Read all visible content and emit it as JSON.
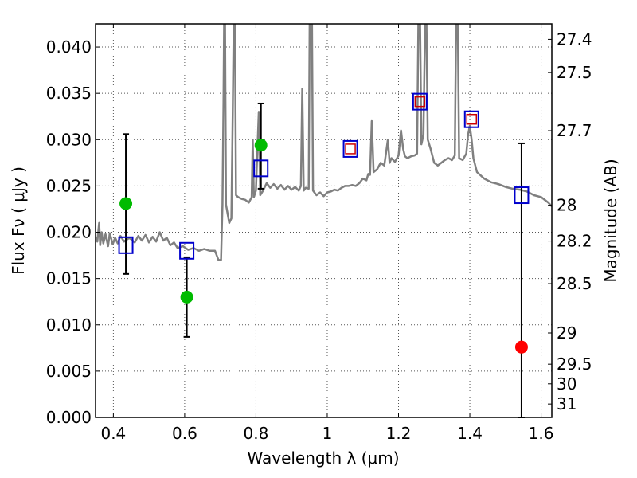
{
  "chart_data": {
    "type": "scatter",
    "xlabel": "Wavelength  λ (μm)",
    "ylabel": "Flux  Fν  ( μJy )",
    "ylabel_right": "Magnitude (AB)",
    "xlim": [
      0.35,
      1.63
    ],
    "ylim": [
      0.0,
      0.0425
    ],
    "grid": true,
    "x_ticks": [
      {
        "value": 0.4,
        "label": "0.4"
      },
      {
        "value": 0.6,
        "label": "0.6"
      },
      {
        "value": 0.8,
        "label": "0.8"
      },
      {
        "value": 1.0,
        "label": "1"
      },
      {
        "value": 1.2,
        "label": "1.2"
      },
      {
        "value": 1.4,
        "label": "1.4"
      },
      {
        "value": 1.6,
        "label": "1.6"
      }
    ],
    "y_ticks": [
      {
        "value": 0.0,
        "label": "0.000"
      },
      {
        "value": 0.005,
        "label": "0.005"
      },
      {
        "value": 0.01,
        "label": "0.010"
      },
      {
        "value": 0.015,
        "label": "0.015"
      },
      {
        "value": 0.02,
        "label": "0.020"
      },
      {
        "value": 0.025,
        "label": "0.025"
      },
      {
        "value": 0.03,
        "label": "0.030"
      },
      {
        "value": 0.035,
        "label": "0.035"
      },
      {
        "value": 0.04,
        "label": "0.040"
      }
    ],
    "right_ticks": [
      {
        "flux": 0.04083,
        "label": "27.4"
      },
      {
        "flux": 0.03724,
        "label": "27.5"
      },
      {
        "flux": 0.03097,
        "label": "27.7"
      },
      {
        "flux": 0.02291,
        "label": "28"
      },
      {
        "flux": 0.01905,
        "label": "28.2"
      },
      {
        "flux": 0.01445,
        "label": "28.5"
      },
      {
        "flux": 0.00912,
        "label": "29"
      },
      {
        "flux": 0.00575,
        "label": "29.5"
      },
      {
        "flux": 0.00363,
        "label": "30"
      },
      {
        "flux": 0.00145,
        "label": "31"
      }
    ],
    "series": [
      {
        "kind": "line",
        "color": "#808080",
        "points": [
          [
            0.35,
            0.0195
          ],
          [
            0.355,
            0.019
          ],
          [
            0.36,
            0.021
          ],
          [
            0.363,
            0.0186
          ],
          [
            0.367,
            0.02
          ],
          [
            0.372,
            0.0188
          ],
          [
            0.378,
            0.0198
          ],
          [
            0.385,
            0.0185
          ],
          [
            0.39,
            0.0199
          ],
          [
            0.398,
            0.0187
          ],
          [
            0.405,
            0.0194
          ],
          [
            0.412,
            0.0188
          ],
          [
            0.42,
            0.0196
          ],
          [
            0.43,
            0.019
          ],
          [
            0.445,
            0.0194
          ],
          [
            0.46,
            0.0189
          ],
          [
            0.47,
            0.0196
          ],
          [
            0.48,
            0.0191
          ],
          [
            0.49,
            0.0197
          ],
          [
            0.5,
            0.0189
          ],
          [
            0.51,
            0.0195
          ],
          [
            0.52,
            0.019
          ],
          [
            0.53,
            0.02
          ],
          [
            0.54,
            0.0191
          ],
          [
            0.55,
            0.0194
          ],
          [
            0.56,
            0.0186
          ],
          [
            0.57,
            0.0189
          ],
          [
            0.58,
            0.0183
          ],
          [
            0.595,
            0.0185
          ],
          [
            0.61,
            0.0181
          ],
          [
            0.625,
            0.0183
          ],
          [
            0.64,
            0.018
          ],
          [
            0.655,
            0.0182
          ],
          [
            0.67,
            0.018
          ],
          [
            0.685,
            0.018
          ],
          [
            0.695,
            0.017
          ],
          [
            0.702,
            0.017
          ],
          [
            0.706,
            0.023
          ],
          [
            0.709,
            0.034
          ],
          [
            0.711,
            0.044
          ],
          [
            0.713,
            0.044
          ],
          [
            0.716,
            0.023
          ],
          [
            0.725,
            0.021
          ],
          [
            0.731,
            0.0215
          ],
          [
            0.735,
            0.033
          ],
          [
            0.738,
            0.044
          ],
          [
            0.741,
            0.044
          ],
          [
            0.744,
            0.024
          ],
          [
            0.75,
            0.0238
          ],
          [
            0.76,
            0.0236
          ],
          [
            0.77,
            0.0235
          ],
          [
            0.78,
            0.0232
          ],
          [
            0.788,
            0.0238
          ],
          [
            0.791,
            0.03
          ],
          [
            0.794,
            0.0238
          ],
          [
            0.8,
            0.0245
          ],
          [
            0.808,
            0.033
          ],
          [
            0.812,
            0.024
          ],
          [
            0.82,
            0.0245
          ],
          [
            0.83,
            0.0253
          ],
          [
            0.84,
            0.0248
          ],
          [
            0.85,
            0.0252
          ],
          [
            0.86,
            0.0247
          ],
          [
            0.87,
            0.0251
          ],
          [
            0.88,
            0.0246
          ],
          [
            0.89,
            0.025
          ],
          [
            0.9,
            0.0246
          ],
          [
            0.91,
            0.0249
          ],
          [
            0.92,
            0.0245
          ],
          [
            0.926,
            0.025
          ],
          [
            0.93,
            0.0355
          ],
          [
            0.934,
            0.0245
          ],
          [
            0.94,
            0.0248
          ],
          [
            0.948,
            0.0247
          ],
          [
            0.951,
            0.044
          ],
          [
            0.957,
            0.044
          ],
          [
            0.96,
            0.0245
          ],
          [
            0.97,
            0.024
          ],
          [
            0.98,
            0.0243
          ],
          [
            0.99,
            0.0239
          ],
          [
            1.0,
            0.0243
          ],
          [
            1.01,
            0.0244
          ],
          [
            1.02,
            0.0246
          ],
          [
            1.03,
            0.0245
          ],
          [
            1.04,
            0.0248
          ],
          [
            1.05,
            0.025
          ],
          [
            1.06,
            0.025
          ],
          [
            1.07,
            0.0251
          ],
          [
            1.08,
            0.025
          ],
          [
            1.09,
            0.0253
          ],
          [
            1.1,
            0.0258
          ],
          [
            1.11,
            0.0256
          ],
          [
            1.115,
            0.0263
          ],
          [
            1.12,
            0.0262
          ],
          [
            1.125,
            0.032
          ],
          [
            1.13,
            0.0265
          ],
          [
            1.14,
            0.0268
          ],
          [
            1.15,
            0.0275
          ],
          [
            1.16,
            0.0272
          ],
          [
            1.17,
            0.03
          ],
          [
            1.175,
            0.0275
          ],
          [
            1.18,
            0.028
          ],
          [
            1.19,
            0.0276
          ],
          [
            1.2,
            0.0283
          ],
          [
            1.207,
            0.031
          ],
          [
            1.213,
            0.029
          ],
          [
            1.218,
            0.0282
          ],
          [
            1.225,
            0.028
          ],
          [
            1.235,
            0.0282
          ],
          [
            1.245,
            0.0283
          ],
          [
            1.252,
            0.0285
          ],
          [
            1.256,
            0.044
          ],
          [
            1.26,
            0.044
          ],
          [
            1.264,
            0.0295
          ],
          [
            1.27,
            0.0305
          ],
          [
            1.275,
            0.044
          ],
          [
            1.278,
            0.044
          ],
          [
            1.282,
            0.03
          ],
          [
            1.29,
            0.029
          ],
          [
            1.3,
            0.0275
          ],
          [
            1.31,
            0.0272
          ],
          [
            1.32,
            0.0275
          ],
          [
            1.33,
            0.0278
          ],
          [
            1.34,
            0.028
          ],
          [
            1.35,
            0.0278
          ],
          [
            1.358,
            0.0283
          ],
          [
            1.362,
            0.044
          ],
          [
            1.366,
            0.044
          ],
          [
            1.37,
            0.028
          ],
          [
            1.38,
            0.0278
          ],
          [
            1.39,
            0.0285
          ],
          [
            1.395,
            0.0305
          ],
          [
            1.4,
            0.0315
          ],
          [
            1.405,
            0.03
          ],
          [
            1.41,
            0.028
          ],
          [
            1.42,
            0.0265
          ],
          [
            1.44,
            0.0258
          ],
          [
            1.46,
            0.0254
          ],
          [
            1.48,
            0.0252
          ],
          [
            1.5,
            0.0249
          ],
          [
            1.52,
            0.0247
          ],
          [
            1.54,
            0.0246
          ],
          [
            1.56,
            0.0244
          ],
          [
            1.58,
            0.024
          ],
          [
            1.6,
            0.0238
          ],
          [
            1.62,
            0.0232
          ],
          [
            1.63,
            0.0228
          ]
        ]
      },
      {
        "kind": "errorbar",
        "color": "#000000",
        "points": [
          {
            "x": 0.435,
            "low": 0.0155,
            "high": 0.0306
          },
          {
            "x": 0.606,
            "low": 0.0087,
            "high": 0.0173
          },
          {
            "x": 0.814,
            "low": 0.0247,
            "high": 0.0339
          },
          {
            "x": 1.545,
            "low": 0.0,
            "high": 0.0296
          }
        ]
      },
      {
        "kind": "open-square",
        "color": "#0000cc",
        "points": [
          [
            0.435,
            0.0186
          ],
          [
            0.606,
            0.018
          ],
          [
            0.814,
            0.0269
          ],
          [
            1.065,
            0.029
          ],
          [
            1.26,
            0.0341
          ],
          [
            1.405,
            0.0322
          ],
          [
            1.545,
            0.024
          ]
        ]
      },
      {
        "kind": "small-open-square",
        "color": "#cc0000",
        "points": [
          [
            1.065,
            0.029
          ],
          [
            1.26,
            0.0341
          ],
          [
            1.405,
            0.0322
          ]
        ]
      },
      {
        "kind": "filled-circle",
        "color": "#00bb00",
        "points": [
          [
            0.435,
            0.0231
          ],
          [
            0.606,
            0.013
          ],
          [
            0.814,
            0.0294
          ]
        ]
      },
      {
        "kind": "filled-circle",
        "color": "#ff0000",
        "points": [
          [
            1.545,
            0.0076
          ]
        ]
      }
    ]
  }
}
